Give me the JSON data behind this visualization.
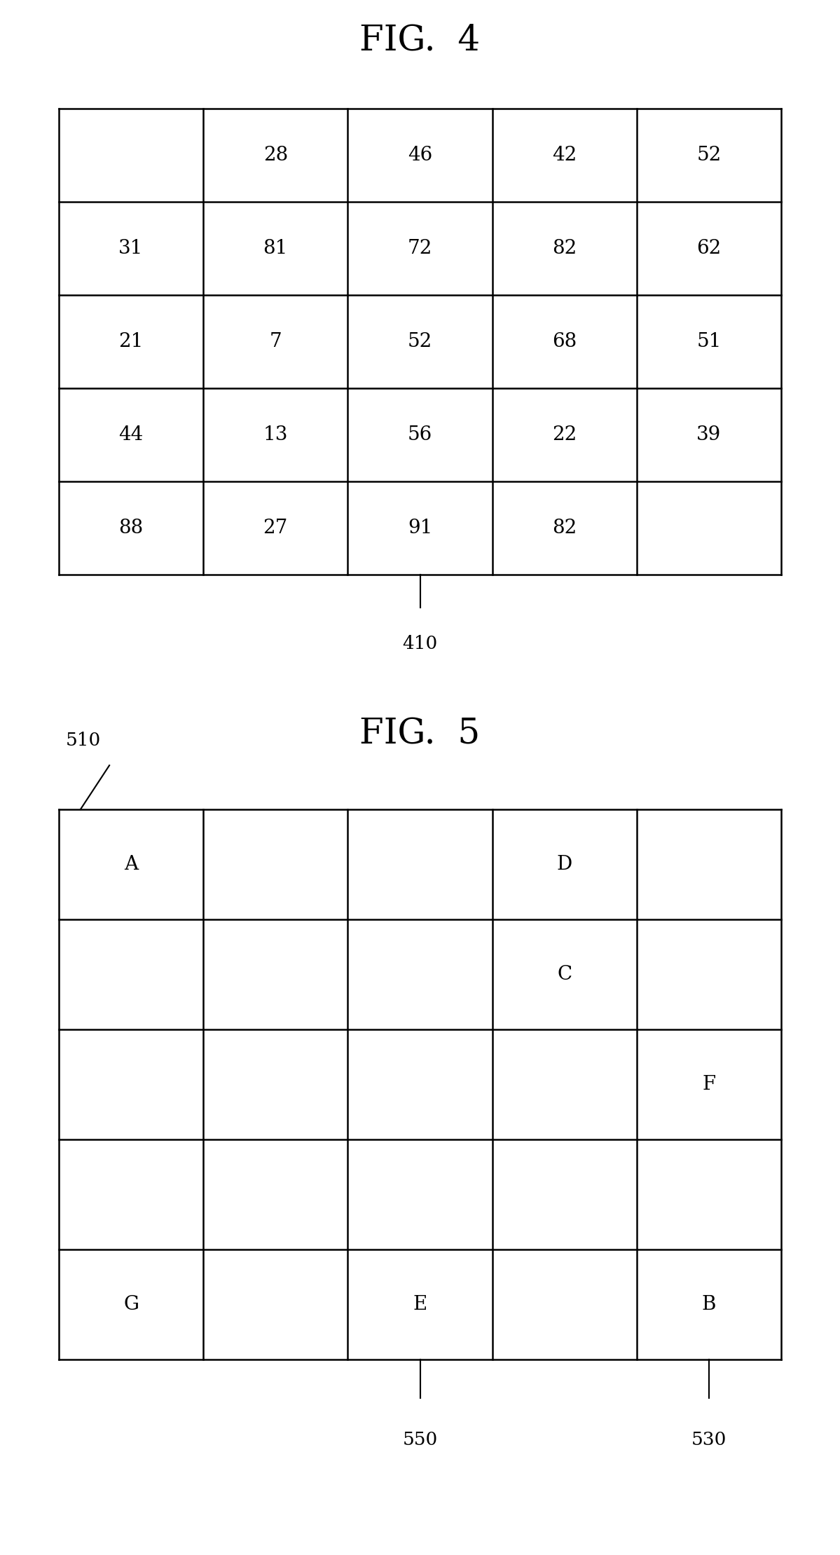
{
  "fig4_title": "FIG.  4",
  "fig5_title": "FIG.  5",
  "fig4_data": [
    [
      "",
      "28",
      "46",
      "42",
      "52"
    ],
    [
      "31",
      "81",
      "72",
      "82",
      "62"
    ],
    [
      "21",
      "7",
      "52",
      "68",
      "51"
    ],
    [
      "44",
      "13",
      "56",
      "22",
      "39"
    ],
    [
      "88",
      "27",
      "91",
      "82",
      ""
    ]
  ],
  "fig5_data": [
    [
      "A",
      "",
      "",
      "D",
      ""
    ],
    [
      "",
      "",
      "",
      "C",
      ""
    ],
    [
      "",
      "",
      "",
      "",
      "F"
    ],
    [
      "",
      "",
      "",
      "",
      ""
    ],
    [
      "G",
      "",
      "E",
      "",
      "B"
    ]
  ],
  "fig4_label": "410",
  "fig5_labels": [
    {
      "text": "510",
      "col": 0,
      "row": 0
    },
    {
      "text": "550",
      "col": 2,
      "row": 4
    },
    {
      "text": "530",
      "col": 4,
      "row": 4
    }
  ],
  "background_color": "#ffffff",
  "line_color": "#000000",
  "text_color": "#000000",
  "cell_fontsize": 20,
  "title_fontsize": 36,
  "label_fontsize": 19,
  "line_width": 1.8
}
